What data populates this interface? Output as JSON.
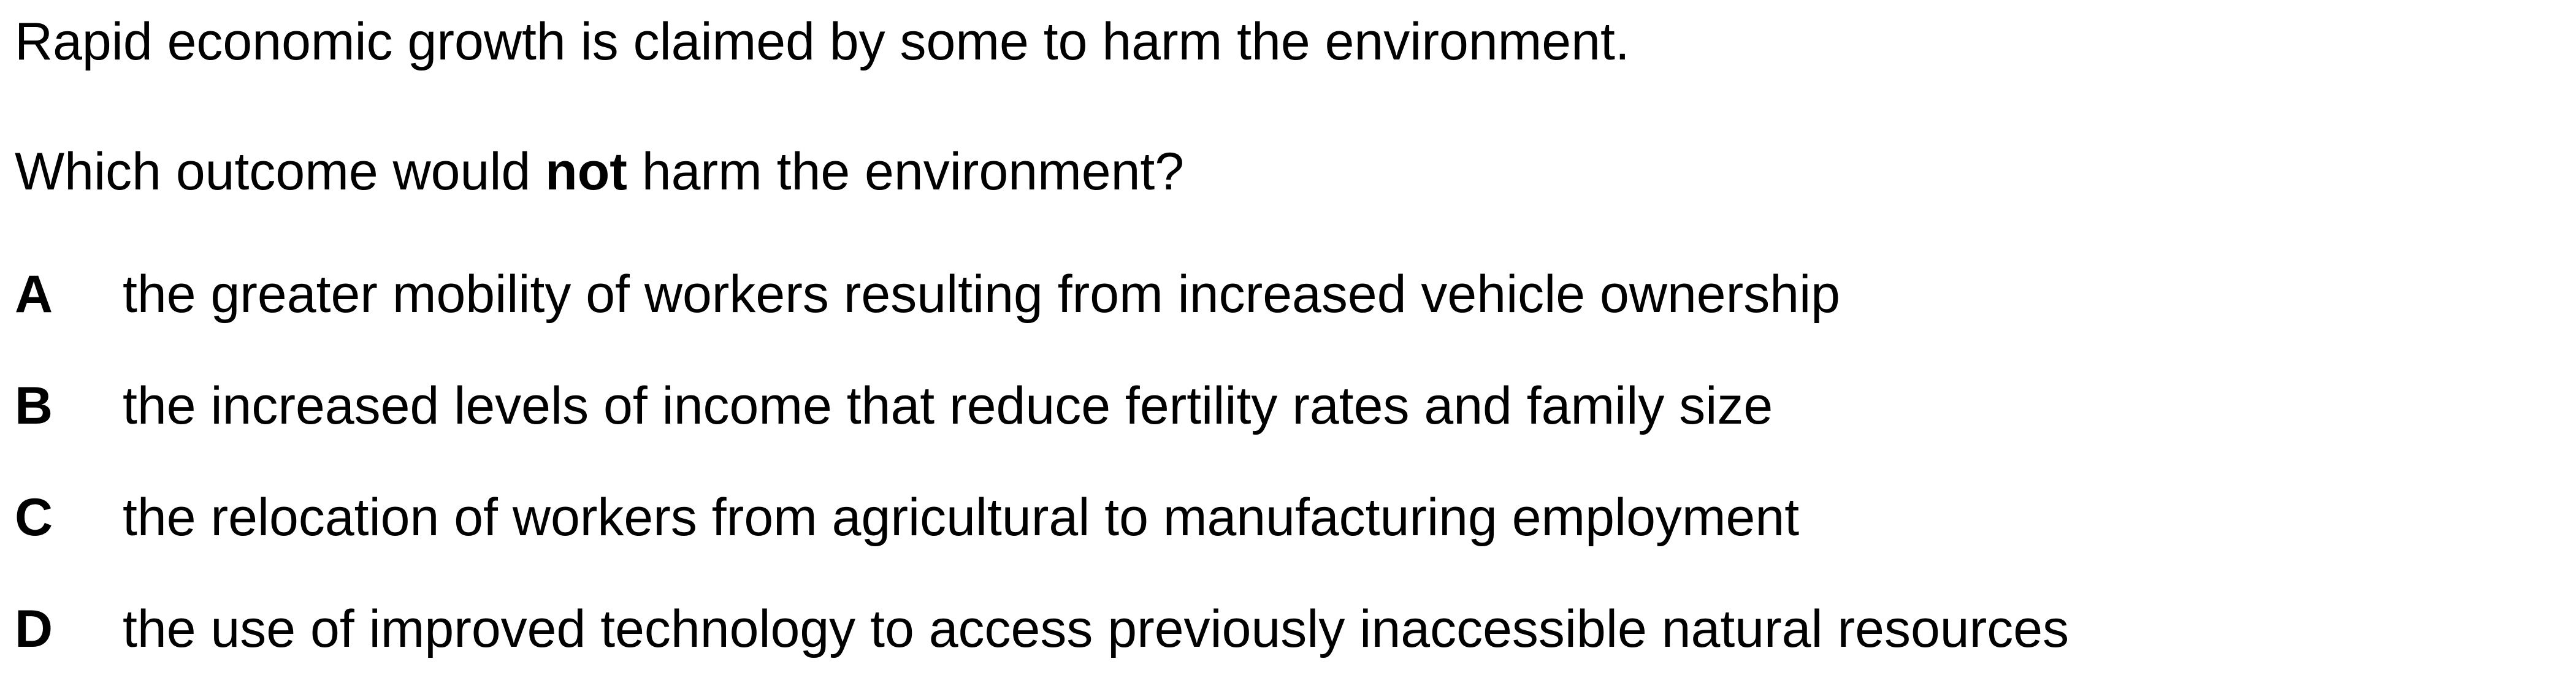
{
  "stem": "Rapid economic growth is claimed by some to harm the environment.",
  "question": {
    "before": "Which outcome would ",
    "emphasis": "not",
    "after": " harm the environment?"
  },
  "options": [
    {
      "letter": "A",
      "text": "the greater mobility of workers resulting from increased vehicle ownership"
    },
    {
      "letter": "B",
      "text": "the increased levels of income that reduce fertility rates and family size"
    },
    {
      "letter": "C",
      "text": "the relocation of workers from agricultural to manufacturing employment"
    },
    {
      "letter": "D",
      "text": "the use of improved technology to access previously inaccessible natural resources"
    }
  ]
}
